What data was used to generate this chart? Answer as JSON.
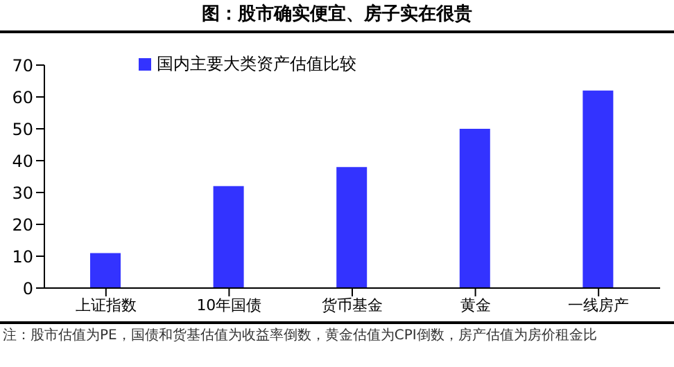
{
  "chart_data": {
    "type": "bar",
    "title": "图：股市确实便宜、房子实在很贵",
    "categories": [
      "上证指数",
      "10年国债",
      "货币基金",
      "黄金",
      "一线房产"
    ],
    "series": [
      {
        "name": "国内主要大类资产估值比较",
        "color": "#3333ff",
        "values": [
          11,
          32,
          38,
          50,
          62
        ]
      }
    ],
    "ylim": [
      0,
      70
    ],
    "yticks": [
      0,
      10,
      20,
      30,
      40,
      50,
      60,
      70
    ],
    "grid": false,
    "legend": "top left",
    "annotations": [
      "注：股市估值为PE，国债和货基估值为收益率倒数，黄金估值为CPI倒数，房产估值为房价租金比"
    ]
  }
}
